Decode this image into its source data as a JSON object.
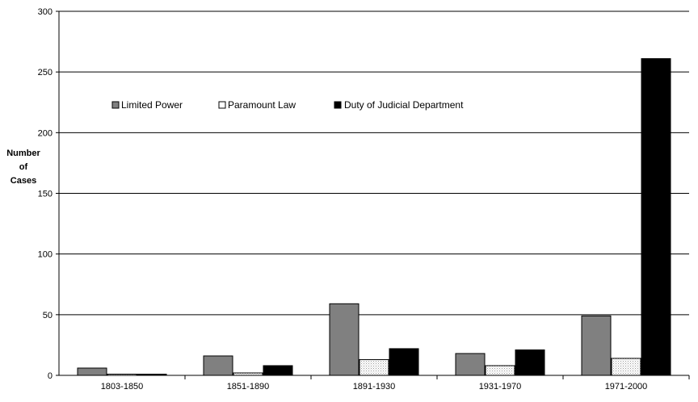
{
  "chart_data": {
    "type": "bar",
    "title": "",
    "xlabel": "",
    "ylabel": [
      "Number",
      "of",
      "Cases"
    ],
    "ylim": [
      0,
      300
    ],
    "yticks": [
      0,
      50,
      100,
      150,
      200,
      250,
      300
    ],
    "grid": true,
    "legend_position": "top-left-inside",
    "categories": [
      "1803-1850",
      "1851-1890",
      "1891-1930",
      "1931-1970",
      "1971-2000"
    ],
    "series": [
      {
        "name": "Limited Power",
        "values": [
          6,
          16,
          59,
          18,
          49
        ],
        "fill": "#808080"
      },
      {
        "name": "Paramount Law",
        "values": [
          1,
          2,
          13,
          8,
          14
        ],
        "fill": "dots"
      },
      {
        "name": "Duty of Judicial Department",
        "values": [
          1,
          8,
          22,
          21,
          261
        ],
        "fill": "#000000"
      }
    ]
  }
}
